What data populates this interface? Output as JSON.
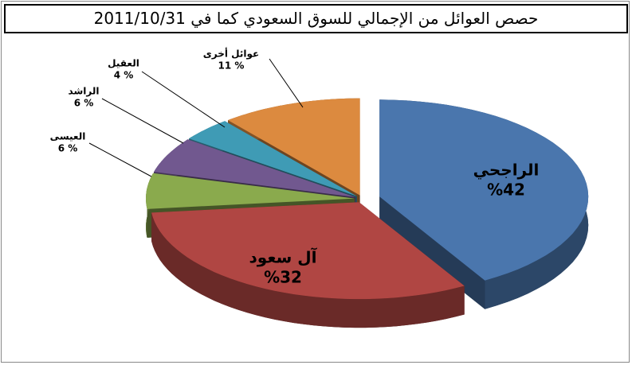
{
  "chart_data": {
    "type": "pie3d",
    "title": "حصص العوائل من الإجمالي للسوق السعودي كما في 2011/10/31",
    "categories": [
      "الراجحي",
      "آل سعود",
      "العيسى",
      "الراشد",
      "العقيل",
      "عوائل أخرى"
    ],
    "values": [
      42,
      32,
      6,
      6,
      4,
      11
    ],
    "value_labels": [
      "%42",
      "%32",
      "6 %",
      "6 %",
      "4 %",
      "11 %"
    ],
    "colors": [
      "#4a76ad",
      "#b04643",
      "#8aaa4d",
      "#71588f",
      "#3f9bb5",
      "#dc8a3f"
    ]
  }
}
